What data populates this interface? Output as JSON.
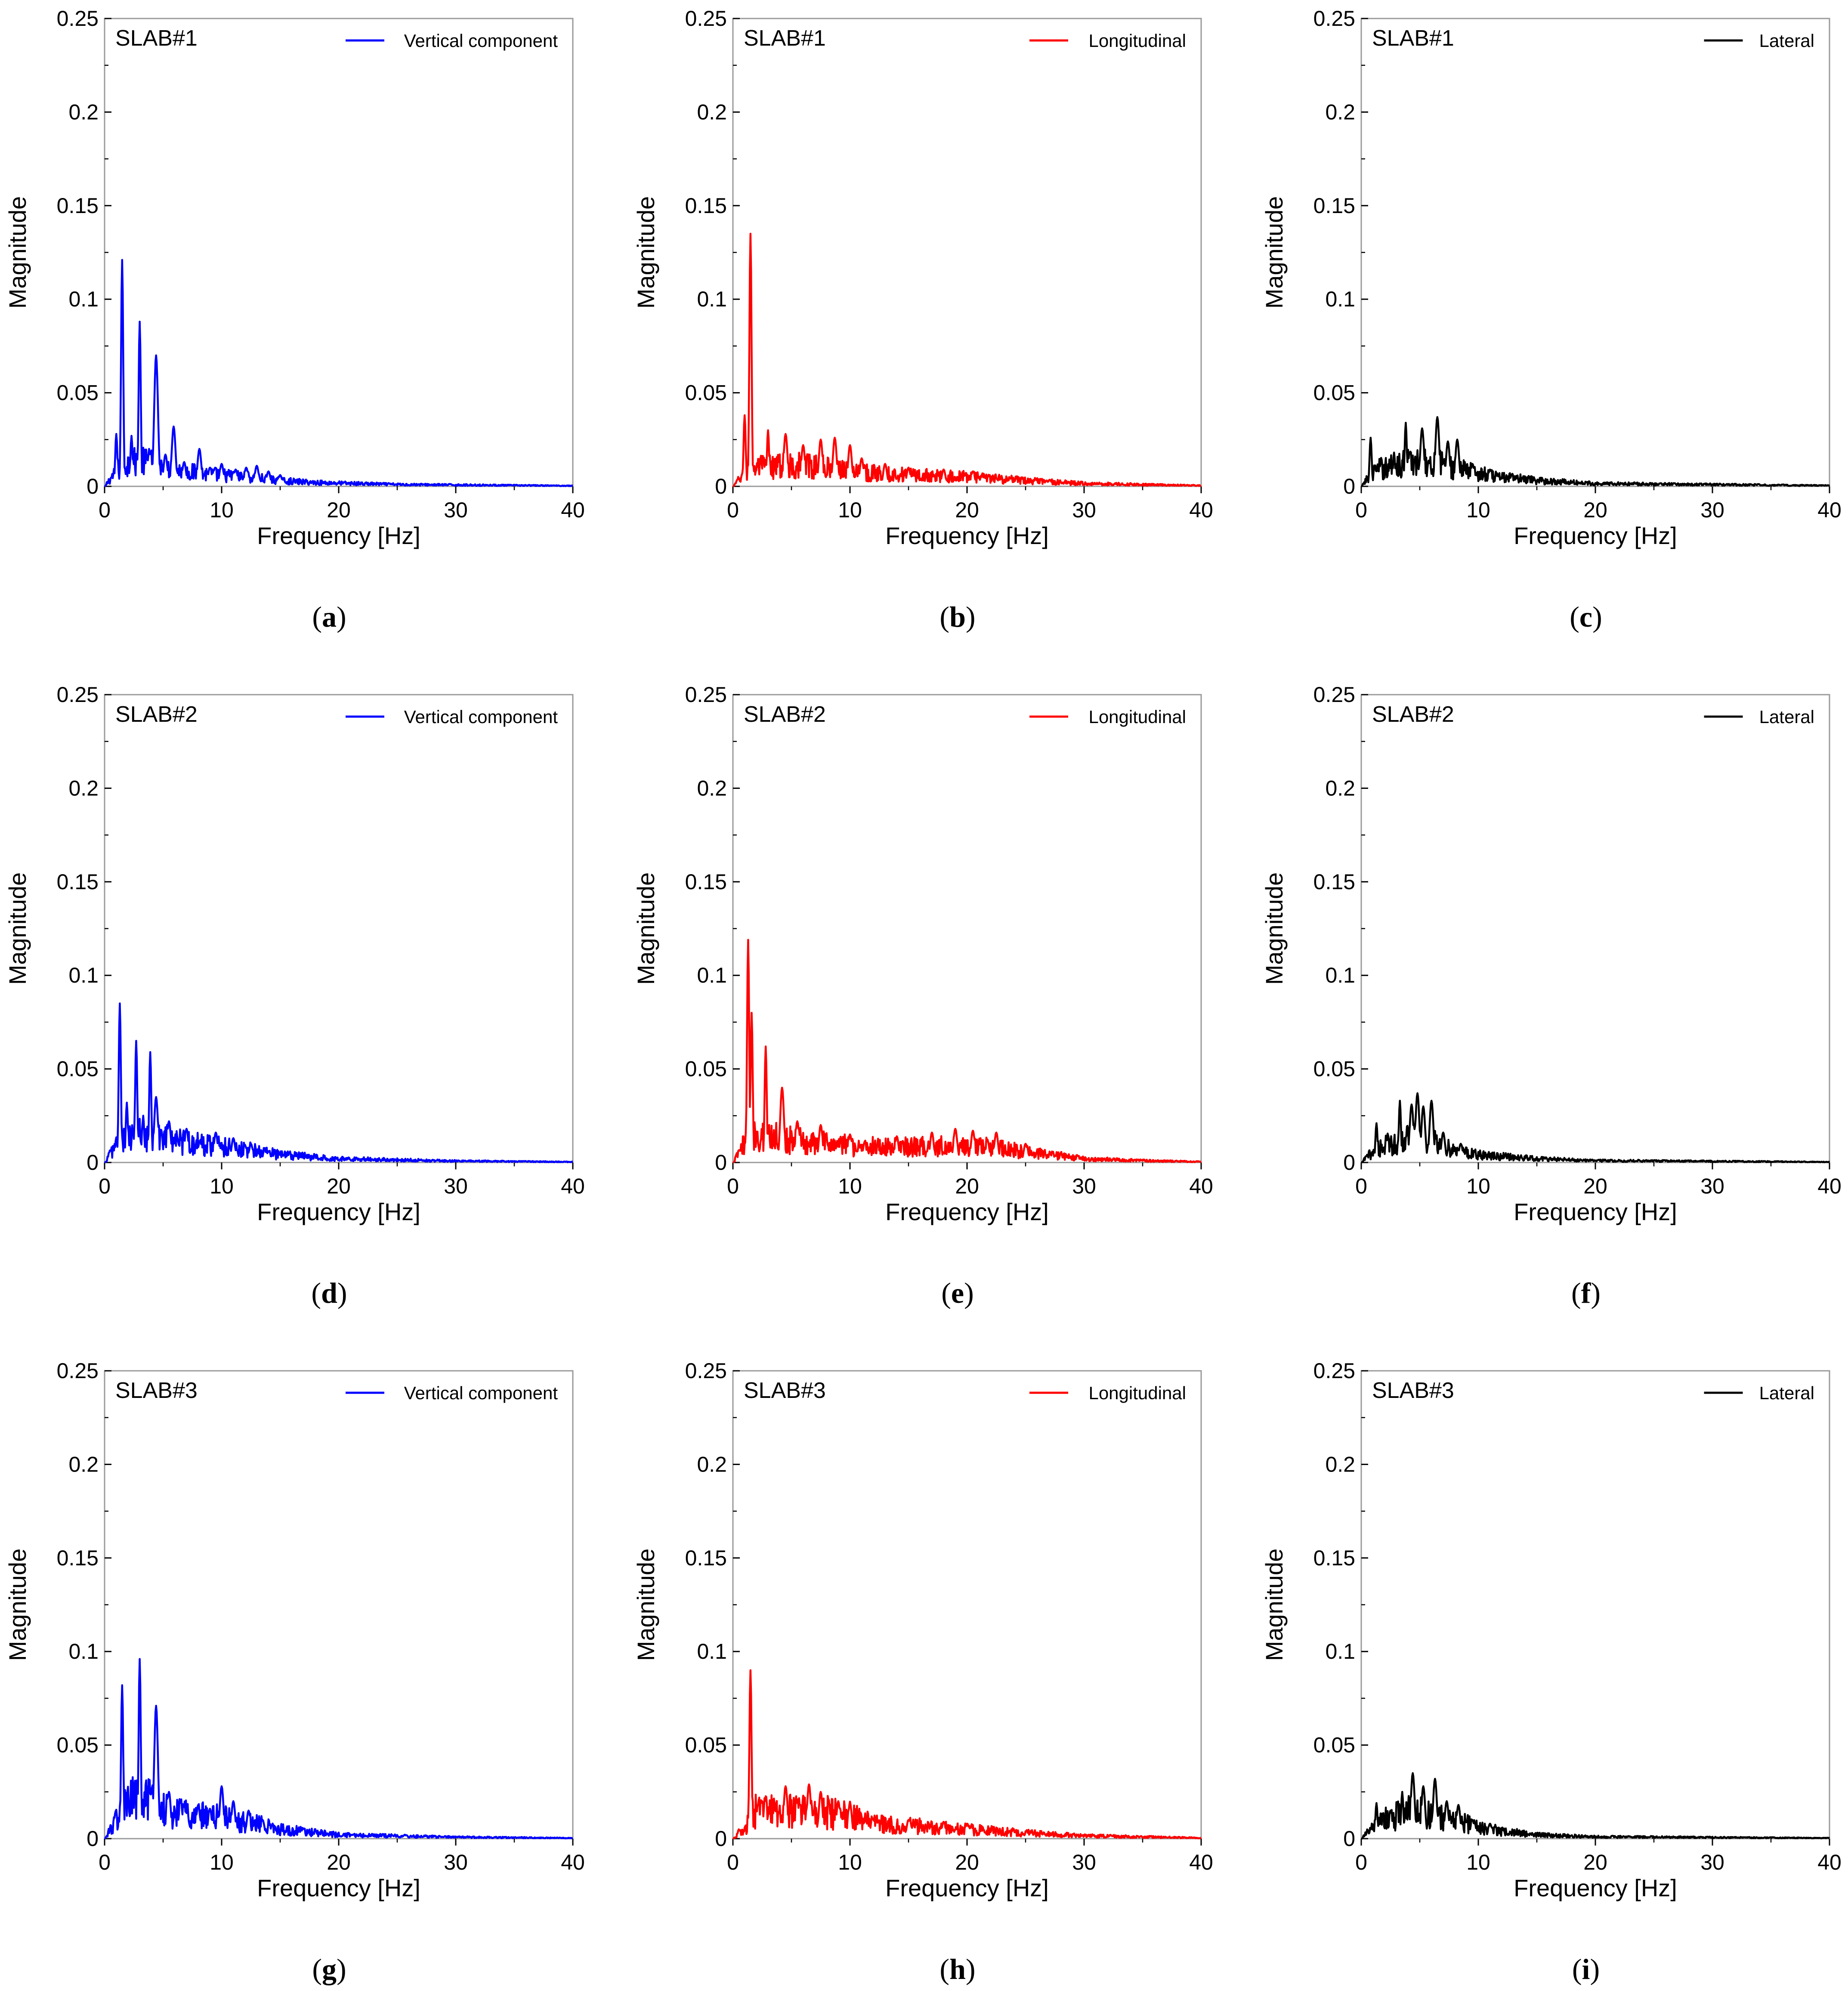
{
  "chart_data": [
    {
      "panel": "a",
      "caption_open": "(",
      "caption_letter": "a",
      "caption_close": ")",
      "type": "line",
      "title": "SLAB#1",
      "legend": "Vertical component",
      "color": "#0000ff",
      "xlabel": "Frequency  [Hz]",
      "ylabel": "Magnitude",
      "xlim": [
        0,
        40
      ],
      "ylim": [
        0,
        0.25
      ],
      "xticks": [
        0,
        10,
        20,
        30,
        40
      ],
      "xtick_labels": [
        "0",
        "10",
        "20",
        "30",
        "40"
      ],
      "yticks": [
        0,
        0.05,
        0.1,
        0.15,
        0.2,
        0.25
      ],
      "ytick_labels": [
        "0",
        "0.05",
        "0.1",
        "0.15",
        "0.2",
        "0.25"
      ],
      "peaks": [
        [
          1.0,
          0.028
        ],
        [
          1.5,
          0.121
        ],
        [
          2.3,
          0.027
        ],
        [
          3.0,
          0.088
        ],
        [
          3.8,
          0.02
        ],
        [
          4.4,
          0.07
        ],
        [
          5.2,
          0.017
        ],
        [
          5.9,
          0.032
        ],
        [
          6.8,
          0.013
        ],
        [
          8.1,
          0.02
        ],
        [
          9.0,
          0.01
        ],
        [
          10.0,
          0.012
        ],
        [
          11.2,
          0.009
        ],
        [
          12.1,
          0.01
        ],
        [
          13.0,
          0.011
        ],
        [
          14.0,
          0.008
        ],
        [
          15.0,
          0.006
        ]
      ],
      "floor": [
        [
          0,
          0
        ],
        [
          1,
          0.008
        ],
        [
          2,
          0.012
        ],
        [
          3,
          0.013
        ],
        [
          4,
          0.012
        ],
        [
          5,
          0.01
        ],
        [
          6,
          0.009
        ],
        [
          8,
          0.007
        ],
        [
          10,
          0.006
        ],
        [
          12,
          0.005
        ],
        [
          15,
          0.003
        ],
        [
          18,
          0.002
        ],
        [
          25,
          0.001
        ],
        [
          40,
          0.0003
        ]
      ]
    },
    {
      "panel": "b",
      "caption_open": "(",
      "caption_letter": "b",
      "caption_close": ")",
      "type": "line",
      "title": "SLAB#1",
      "legend": "Longitudinal",
      "color": "#ff0000",
      "xlabel": "Frequency  [Hz]",
      "ylabel": "Magnitude",
      "xlim": [
        0,
        40
      ],
      "ylim": [
        0,
        0.25
      ],
      "xticks": [
        0,
        10,
        20,
        30,
        40
      ],
      "xtick_labels": [
        "0",
        "10",
        "20",
        "30",
        "40"
      ],
      "yticks": [
        0,
        0.05,
        0.1,
        0.15,
        0.2,
        0.25
      ],
      "ytick_labels": [
        "0",
        "0.05",
        "0.1",
        "0.15",
        "0.2",
        "0.25"
      ],
      "peaks": [
        [
          1.0,
          0.038
        ],
        [
          1.5,
          0.135
        ],
        [
          3.0,
          0.03
        ],
        [
          4.5,
          0.028
        ],
        [
          6.0,
          0.022
        ],
        [
          7.5,
          0.025
        ],
        [
          8.7,
          0.026
        ],
        [
          10.0,
          0.022
        ],
        [
          11.0,
          0.015
        ],
        [
          13.0,
          0.012
        ],
        [
          15.0,
          0.01
        ],
        [
          18.0,
          0.009
        ],
        [
          20.5,
          0.008
        ]
      ],
      "floor": [
        [
          0,
          0
        ],
        [
          1,
          0.007
        ],
        [
          2,
          0.01
        ],
        [
          4,
          0.011
        ],
        [
          6,
          0.011
        ],
        [
          8,
          0.01
        ],
        [
          10,
          0.009
        ],
        [
          12,
          0.007
        ],
        [
          15,
          0.006
        ],
        [
          20,
          0.005
        ],
        [
          25,
          0.003
        ],
        [
          30,
          0.0015
        ],
        [
          40,
          0.0004
        ]
      ]
    },
    {
      "panel": "c",
      "caption_open": "(",
      "caption_letter": "c",
      "caption_close": ")",
      "type": "line",
      "title": "SLAB#1",
      "legend": "Lateral",
      "color": "#000000",
      "xlabel": "Frequency  [Hz]",
      "ylabel": "Magnitude",
      "xlim": [
        0,
        40
      ],
      "ylim": [
        0,
        0.25
      ],
      "xticks": [
        0,
        10,
        20,
        30,
        40
      ],
      "xtick_labels": [
        "0",
        "10",
        "20",
        "30",
        "40"
      ],
      "yticks": [
        0,
        0.05,
        0.1,
        0.15,
        0.2,
        0.25
      ],
      "ytick_labels": [
        "0",
        "0.05",
        "0.1",
        "0.15",
        "0.2",
        "0.25"
      ],
      "peaks": [
        [
          0.8,
          0.026
        ],
        [
          2.8,
          0.018
        ],
        [
          3.8,
          0.034
        ],
        [
          5.2,
          0.031
        ],
        [
          6.5,
          0.037
        ],
        [
          7.4,
          0.024
        ],
        [
          8.2,
          0.025
        ],
        [
          9.5,
          0.012
        ],
        [
          11.0,
          0.009
        ]
      ],
      "floor": [
        [
          0,
          0
        ],
        [
          1,
          0.008
        ],
        [
          2,
          0.01
        ],
        [
          4,
          0.013
        ],
        [
          6,
          0.013
        ],
        [
          8,
          0.01
        ],
        [
          10,
          0.007
        ],
        [
          12,
          0.005
        ],
        [
          15,
          0.003
        ],
        [
          20,
          0.0015
        ],
        [
          40,
          0.0004
        ]
      ]
    },
    {
      "panel": "d",
      "caption_open": "(",
      "caption_letter": "d",
      "caption_close": ")",
      "type": "line",
      "title": "SLAB#2",
      "legend": "Vertical component",
      "color": "#0000ff",
      "xlabel": "Frequency  [Hz]",
      "ylabel": "Magnitude",
      "xlim": [
        0,
        40
      ],
      "ylim": [
        0,
        0.25
      ],
      "xticks": [
        0,
        10,
        20,
        30,
        40
      ],
      "xtick_labels": [
        "0",
        "10",
        "20",
        "30",
        "40"
      ],
      "yticks": [
        0,
        0.05,
        0.1,
        0.15,
        0.2,
        0.25
      ],
      "ytick_labels": [
        "0",
        "0.05",
        "0.1",
        "0.15",
        "0.2",
        "0.25"
      ],
      "peaks": [
        [
          1.3,
          0.085
        ],
        [
          1.9,
          0.032
        ],
        [
          2.7,
          0.065
        ],
        [
          3.3,
          0.025
        ],
        [
          3.9,
          0.059
        ],
        [
          4.4,
          0.035
        ],
        [
          5.5,
          0.022
        ],
        [
          7.0,
          0.018
        ],
        [
          9.5,
          0.016
        ],
        [
          11.0,
          0.013
        ],
        [
          12.5,
          0.01
        ],
        [
          14.0,
          0.006
        ]
      ],
      "floor": [
        [
          0,
          0
        ],
        [
          1,
          0.01
        ],
        [
          2,
          0.014
        ],
        [
          4,
          0.015
        ],
        [
          6,
          0.012
        ],
        [
          8,
          0.01
        ],
        [
          10,
          0.009
        ],
        [
          12,
          0.007
        ],
        [
          15,
          0.004
        ],
        [
          20,
          0.002
        ],
        [
          30,
          0.0008
        ],
        [
          40,
          0.0003
        ]
      ]
    },
    {
      "panel": "e",
      "caption_open": "(",
      "caption_letter": "e",
      "caption_close": ")",
      "type": "line",
      "title": "SLAB#2",
      "legend": "Longitudinal",
      "color": "#ff0000",
      "xlabel": "Frequency  [Hz]",
      "ylabel": "Magnitude",
      "xlim": [
        0,
        40
      ],
      "ylim": [
        0,
        0.25
      ],
      "xticks": [
        0,
        10,
        20,
        30,
        40
      ],
      "xtick_labels": [
        "0",
        "10",
        "20",
        "30",
        "40"
      ],
      "yticks": [
        0,
        0.05,
        0.1,
        0.15,
        0.2,
        0.25
      ],
      "ytick_labels": [
        "0",
        "0.05",
        "0.1",
        "0.15",
        "0.2",
        "0.25"
      ],
      "peaks": [
        [
          1.3,
          0.119
        ],
        [
          1.6,
          0.08
        ],
        [
          2.8,
          0.062
        ],
        [
          4.2,
          0.04
        ],
        [
          5.5,
          0.022
        ],
        [
          7.5,
          0.02
        ],
        [
          10.0,
          0.015
        ],
        [
          14.0,
          0.014
        ],
        [
          17.0,
          0.016
        ],
        [
          19.0,
          0.018
        ],
        [
          20.5,
          0.017
        ],
        [
          22.5,
          0.016
        ],
        [
          25.0,
          0.01
        ]
      ],
      "floor": [
        [
          0,
          0
        ],
        [
          1,
          0.01
        ],
        [
          2,
          0.015
        ],
        [
          4,
          0.013
        ],
        [
          6,
          0.011
        ],
        [
          8,
          0.01
        ],
        [
          10,
          0.009
        ],
        [
          14,
          0.008
        ],
        [
          18,
          0.009
        ],
        [
          22,
          0.008
        ],
        [
          26,
          0.005
        ],
        [
          30,
          0.002
        ],
        [
          35,
          0.001
        ],
        [
          40,
          0.0004
        ]
      ]
    },
    {
      "panel": "f",
      "caption_open": "(",
      "caption_letter": "f",
      "caption_close": ")",
      "type": "line",
      "title": "SLAB#2",
      "legend": "Lateral",
      "color": "#000000",
      "xlabel": "Frequency  [Hz]",
      "ylabel": "Magnitude",
      "xlim": [
        0,
        40
      ],
      "ylim": [
        0,
        0.25
      ],
      "xticks": [
        0,
        10,
        20,
        30,
        40
      ],
      "xtick_labels": [
        "0",
        "10",
        "20",
        "30",
        "40"
      ],
      "yticks": [
        0,
        0.05,
        0.1,
        0.15,
        0.2,
        0.25
      ],
      "ytick_labels": [
        "0",
        "0.05",
        "0.1",
        "0.15",
        "0.2",
        "0.25"
      ],
      "peaks": [
        [
          1.3,
          0.021
        ],
        [
          3.3,
          0.033
        ],
        [
          4.3,
          0.031
        ],
        [
          4.8,
          0.037
        ],
        [
          5.3,
          0.03
        ],
        [
          6.0,
          0.033
        ],
        [
          7.0,
          0.016
        ],
        [
          8.5,
          0.01
        ]
      ],
      "floor": [
        [
          0,
          0
        ],
        [
          1,
          0.006
        ],
        [
          2,
          0.009
        ],
        [
          4,
          0.013
        ],
        [
          6,
          0.011
        ],
        [
          8,
          0.006
        ],
        [
          10,
          0.004
        ],
        [
          15,
          0.002
        ],
        [
          20,
          0.001
        ],
        [
          40,
          0.0003
        ]
      ]
    },
    {
      "panel": "g",
      "caption_open": "(",
      "caption_letter": "g",
      "caption_close": ")",
      "type": "line",
      "title": "SLAB#3",
      "legend": "Vertical component",
      "color": "#0000ff",
      "xlabel": "Frequency  [Hz]",
      "ylabel": "Magnitude",
      "xlim": [
        0,
        40
      ],
      "ylim": [
        0,
        0.25
      ],
      "xticks": [
        0,
        10,
        20,
        30,
        40
      ],
      "xtick_labels": [
        "0",
        "10",
        "20",
        "30",
        "40"
      ],
      "yticks": [
        0,
        0.05,
        0.1,
        0.15,
        0.2,
        0.25
      ],
      "ytick_labels": [
        "0",
        "0.05",
        "0.1",
        "0.15",
        "0.2",
        "0.25"
      ],
      "peaks": [
        [
          1.5,
          0.082
        ],
        [
          3.0,
          0.096
        ],
        [
          4.4,
          0.071
        ],
        [
          5.5,
          0.025
        ],
        [
          6.5,
          0.02
        ],
        [
          8.0,
          0.018
        ],
        [
          9.0,
          0.016
        ],
        [
          10.0,
          0.028
        ],
        [
          11.0,
          0.02
        ],
        [
          12.3,
          0.015
        ],
        [
          13.5,
          0.01
        ]
      ],
      "floor": [
        [
          0,
          0
        ],
        [
          0.8,
          0.008
        ],
        [
          2,
          0.02
        ],
        [
          3.5,
          0.02
        ],
        [
          5,
          0.016
        ],
        [
          7,
          0.013
        ],
        [
          9,
          0.012
        ],
        [
          11,
          0.01
        ],
        [
          13,
          0.008
        ],
        [
          15,
          0.005
        ],
        [
          20,
          0.002
        ],
        [
          30,
          0.0008
        ],
        [
          40,
          0.0003
        ]
      ]
    },
    {
      "panel": "h",
      "caption_open": "(",
      "caption_letter": "h",
      "caption_close": ")",
      "type": "line",
      "title": "SLAB#3",
      "legend": "Longitudinal",
      "color": "#ff0000",
      "xlabel": "Frequency  [Hz]",
      "ylabel": "Magnitude",
      "xlim": [
        0,
        40
      ],
      "ylim": [
        0,
        0.25
      ],
      "xticks": [
        0,
        10,
        20,
        30,
        40
      ],
      "xtick_labels": [
        "0",
        "10",
        "20",
        "30",
        "40"
      ],
      "yticks": [
        0,
        0.05,
        0.1,
        0.15,
        0.2,
        0.25
      ],
      "ytick_labels": [
        "0",
        "0.05",
        "0.1",
        "0.15",
        "0.2",
        "0.25"
      ],
      "peaks": [
        [
          0.5,
          0.005
        ],
        [
          1.5,
          0.09
        ],
        [
          2.5,
          0.02
        ],
        [
          4.5,
          0.028
        ],
        [
          5.5,
          0.02
        ],
        [
          6.5,
          0.029
        ],
        [
          7.5,
          0.025
        ],
        [
          9.0,
          0.02
        ],
        [
          10.0,
          0.019
        ],
        [
          12.0,
          0.01
        ],
        [
          15.0,
          0.01
        ],
        [
          18.0,
          0.009
        ],
        [
          20.0,
          0.008
        ]
      ],
      "floor": [
        [
          0,
          0
        ],
        [
          1,
          0.005
        ],
        [
          2,
          0.015
        ],
        [
          4,
          0.014
        ],
        [
          6,
          0.015
        ],
        [
          8,
          0.014
        ],
        [
          10,
          0.012
        ],
        [
          12,
          0.008
        ],
        [
          15,
          0.007
        ],
        [
          20,
          0.005
        ],
        [
          25,
          0.003
        ],
        [
          30,
          0.0015
        ],
        [
          40,
          0.0004
        ]
      ]
    },
    {
      "panel": "i",
      "caption_open": "(",
      "caption_letter": "i",
      "caption_close": ")",
      "type": "line",
      "title": "SLAB#3",
      "legend": "Lateral",
      "color": "#000000",
      "xlabel": "Frequency  [Hz]",
      "ylabel": "Magnitude",
      "xlim": [
        0,
        40
      ],
      "ylim": [
        0,
        0.25
      ],
      "xticks": [
        0,
        10,
        20,
        30,
        40
      ],
      "xtick_labels": [
        "0",
        "10",
        "20",
        "30",
        "40"
      ],
      "yticks": [
        0,
        0.05,
        0.1,
        0.15,
        0.2,
        0.25
      ],
      "ytick_labels": [
        "0",
        "0.05",
        "0.1",
        "0.15",
        "0.2",
        "0.25"
      ],
      "peaks": [
        [
          1.3,
          0.019
        ],
        [
          2.5,
          0.015
        ],
        [
          3.5,
          0.025
        ],
        [
          4.4,
          0.035
        ],
        [
          5.3,
          0.028
        ],
        [
          6.3,
          0.032
        ],
        [
          7.3,
          0.02
        ],
        [
          8.3,
          0.018
        ],
        [
          9.5,
          0.01
        ],
        [
          11.0,
          0.008
        ]
      ],
      "floor": [
        [
          0,
          0
        ],
        [
          0.8,
          0.005
        ],
        [
          2,
          0.01
        ],
        [
          4,
          0.014
        ],
        [
          6,
          0.013
        ],
        [
          8,
          0.01
        ],
        [
          10,
          0.006
        ],
        [
          12,
          0.004
        ],
        [
          15,
          0.002
        ],
        [
          20,
          0.001
        ],
        [
          40,
          0.0003
        ]
      ]
    }
  ]
}
